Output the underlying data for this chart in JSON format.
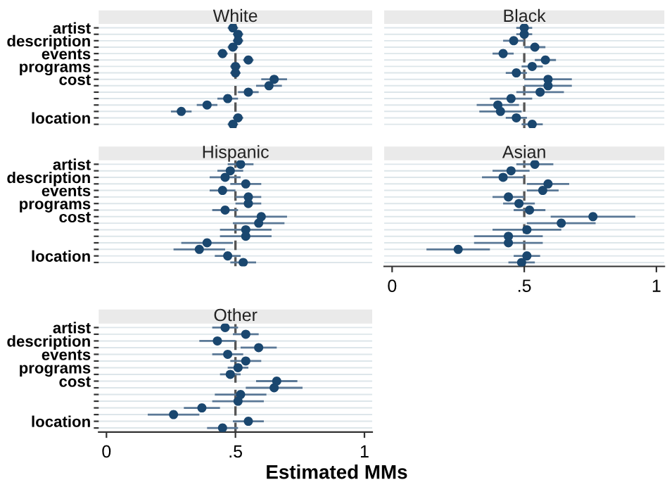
{
  "chart_data": [
    {
      "type": "scatter",
      "orientation": "horizontal",
      "title": "White",
      "color": "#1a476f",
      "marker": "circle",
      "grid": "y",
      "tick_labels": "y",
      "categories": [
        "artist",
        null,
        "description",
        null,
        "events",
        null,
        "programs",
        null,
        "cost",
        null,
        null,
        null,
        null,
        null,
        "location",
        null
      ],
      "values": [
        0.49,
        0.51,
        0.51,
        0.49,
        0.45,
        0.55,
        0.5,
        0.5,
        0.65,
        0.63,
        0.55,
        0.47,
        0.39,
        0.29,
        0.51,
        0.49
      ],
      "errors": [
        0.02,
        0.02,
        0.02,
        0.02,
        0.02,
        0.02,
        0.02,
        0.02,
        0.05,
        0.05,
        0.04,
        0.04,
        0.04,
        0.04,
        0.02,
        0.02
      ],
      "xlim": [
        -0.03,
        1.03
      ],
      "ref_lines": [
        {
          "axis": "x",
          "value": 0.5,
          "color": "#555555",
          "line_style": "dashed"
        }
      ]
    },
    {
      "type": "scatter",
      "orientation": "horizontal",
      "title": "Black",
      "color": "#1a476f",
      "marker": "circle",
      "grid": "y",
      "tick_labels": false,
      "categories": [
        null,
        null,
        null,
        null,
        null,
        null,
        null,
        null,
        null,
        null,
        null,
        null,
        null,
        null,
        null,
        null
      ],
      "values": [
        0.5,
        0.5,
        0.46,
        0.54,
        0.42,
        0.58,
        0.53,
        0.47,
        0.59,
        0.59,
        0.56,
        0.45,
        0.4,
        0.41,
        0.47,
        0.53
      ],
      "errors": [
        0.03,
        0.03,
        0.04,
        0.04,
        0.04,
        0.04,
        0.04,
        0.04,
        0.09,
        0.09,
        0.09,
        0.08,
        0.08,
        0.08,
        0.04,
        0.04
      ],
      "xlim": [
        -0.03,
        1.03
      ],
      "ref_lines": [
        {
          "axis": "x",
          "value": 0.5,
          "color": "#555555",
          "line_style": "dashed"
        }
      ]
    },
    {
      "type": "scatter",
      "orientation": "horizontal",
      "title": "Hispanic",
      "color": "#1a476f",
      "marker": "circle",
      "grid": "y",
      "tick_labels": "y",
      "categories": [
        "artist",
        null,
        "description",
        null,
        "events",
        null,
        "programs",
        null,
        "cost",
        null,
        null,
        null,
        null,
        null,
        "location",
        null
      ],
      "values": [
        0.52,
        0.48,
        0.46,
        0.54,
        0.45,
        0.55,
        0.55,
        0.46,
        0.6,
        0.59,
        0.54,
        0.54,
        0.39,
        0.36,
        0.47,
        0.53
      ],
      "errors": [
        0.05,
        0.05,
        0.06,
        0.06,
        0.05,
        0.05,
        0.05,
        0.05,
        0.1,
        0.1,
        0.1,
        0.1,
        0.1,
        0.1,
        0.05,
        0.05
      ],
      "xlim": [
        -0.03,
        1.03
      ],
      "ref_lines": [
        {
          "axis": "x",
          "value": 0.5,
          "color": "#555555",
          "line_style": "dashed"
        }
      ]
    },
    {
      "type": "scatter",
      "orientation": "horizontal",
      "title": "Asian",
      "color": "#1a476f",
      "marker": "circle",
      "grid": "y",
      "tick_labels": "x",
      "categories": [
        null,
        null,
        null,
        null,
        null,
        null,
        null,
        null,
        null,
        null,
        null,
        null,
        null,
        null,
        null,
        null
      ],
      "values": [
        0.54,
        0.45,
        0.42,
        0.59,
        0.57,
        0.44,
        0.48,
        0.52,
        0.76,
        0.64,
        0.51,
        0.44,
        0.44,
        0.25,
        0.51,
        0.49
      ],
      "errors": [
        0.07,
        0.07,
        0.08,
        0.08,
        0.06,
        0.06,
        0.06,
        0.06,
        0.16,
        0.13,
        0.13,
        0.13,
        0.13,
        0.12,
        0.05,
        0.05
      ],
      "xlim": [
        -0.03,
        1.03
      ],
      "xticks": [
        0,
        {
          "value": 0.5,
          "label": ".5"
        },
        1
      ],
      "ref_lines": [
        {
          "axis": "x",
          "value": 0.5,
          "color": "#555555",
          "line_style": "dashed"
        }
      ]
    },
    {
      "type": "scatter",
      "orientation": "horizontal",
      "title": "Other",
      "xlabel": "Estimated MMs",
      "color": "#1a476f",
      "marker": "circle",
      "grid": "y",
      "categories": [
        "artist",
        null,
        "description",
        null,
        "events",
        null,
        "programs",
        null,
        "cost",
        null,
        null,
        null,
        null,
        null,
        "location",
        null
      ],
      "values": [
        0.46,
        0.54,
        0.43,
        0.59,
        0.47,
        0.54,
        0.51,
        0.48,
        0.66,
        0.65,
        0.52,
        0.51,
        0.37,
        0.26,
        0.55,
        0.45
      ],
      "errors": [
        0.05,
        0.05,
        0.07,
        0.07,
        0.06,
        0.06,
        0.04,
        0.04,
        0.08,
        0.11,
        0.1,
        0.1,
        0.07,
        0.1,
        0.06,
        0.06
      ],
      "xlim": [
        -0.03,
        1.03
      ],
      "xticks": [
        0,
        {
          "value": 0.5,
          "label": ".5"
        },
        1
      ],
      "ref_lines": [
        {
          "axis": "x",
          "value": 0.5,
          "color": "#555555",
          "line_style": "dashed"
        }
      ]
    }
  ]
}
